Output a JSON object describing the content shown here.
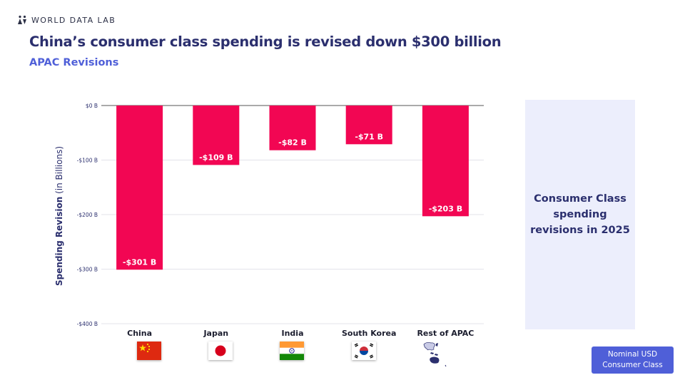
{
  "header": {
    "brand": "WORLD DATA LAB",
    "title": "China’s consumer class spending is revised down $300 billion",
    "subtitle": "APAC Revisions"
  },
  "side_panel": {
    "text": "Consumer Class spending revisions in 2025"
  },
  "badge": {
    "line1": "Nominal USD",
    "line2": "Consumer Class"
  },
  "colors": {
    "bar": "#f20653",
    "title": "#2b2f6e",
    "accent": "#4f5fd8",
    "panel_bg": "#eceefc"
  },
  "chart_data": {
    "type": "bar",
    "categories": [
      "China",
      "Japan",
      "India",
      "South Korea",
      "Rest of APAC"
    ],
    "values": [
      -301,
      -109,
      -82,
      -71,
      -203
    ],
    "data_labels": [
      "-$301 B",
      "-$109 B",
      "-$82 B",
      "-$71 B",
      "-$203 B"
    ],
    "ylabel_bold": "Spending Revision",
    "ylabel_rest": "(in Billions)",
    "yticks": [
      0,
      -100,
      -200,
      -300,
      -400
    ],
    "ytick_labels": [
      "$0 B",
      "-$100 B",
      "-$200 B",
      "-$300 B",
      "-$400 B"
    ],
    "ylim": [
      -400,
      0
    ],
    "grid": true,
    "flags": [
      "china-flag",
      "japan-flag",
      "india-flag",
      "south-korea-flag",
      "apac-map"
    ]
  }
}
